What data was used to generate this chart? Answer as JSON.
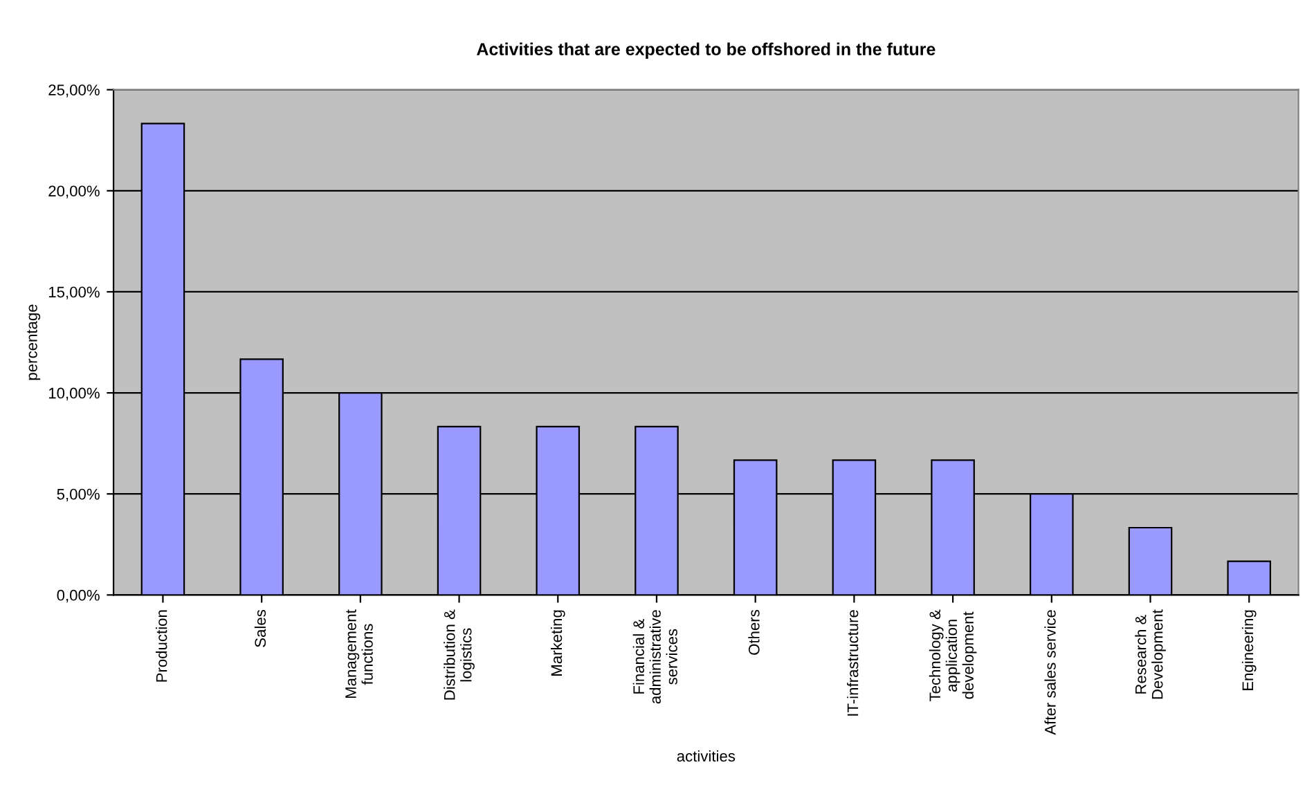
{
  "chart_data": {
    "type": "bar",
    "title": "Activities that are expected to be offshored in the future",
    "xlabel": "activities",
    "ylabel": "percentage",
    "categories": [
      "Production",
      "Sales",
      "Management\nfunctions",
      "Distribution &\nlogistics",
      "Marketing",
      "Financial &\nadministrative\nservices",
      "Others",
      "IT-infrastructure",
      "Technology &\napplication\ndevelopment",
      "After sales service",
      "Research &\nDevelopment",
      "Engineering"
    ],
    "values": [
      23.33,
      11.67,
      10.0,
      8.33,
      8.33,
      8.33,
      6.67,
      6.67,
      6.67,
      5.0,
      3.33,
      1.67
    ],
    "color": "#9999ff",
    "ylim": [
      0,
      25
    ],
    "yticks": [
      {
        "value": 0,
        "label": "0,00%"
      },
      {
        "value": 5,
        "label": "5,00%"
      },
      {
        "value": 10,
        "label": "10,00%"
      },
      {
        "value": 15,
        "label": "15,00%"
      },
      {
        "value": 20,
        "label": "20,00%"
      },
      {
        "value": 25,
        "label": "25,00%"
      }
    ],
    "grid": "y",
    "legend": false
  }
}
